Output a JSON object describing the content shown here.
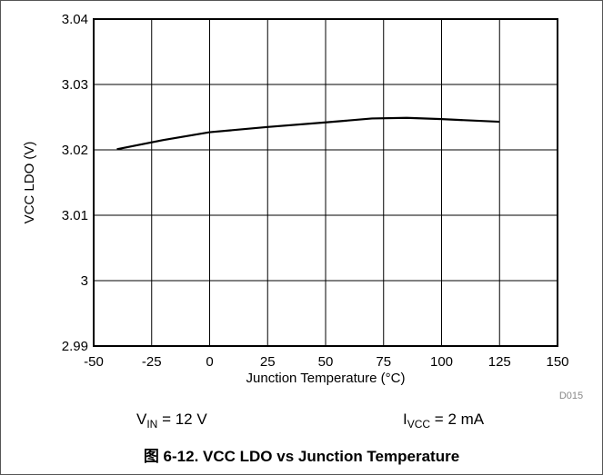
{
  "chart_data": {
    "type": "line",
    "xlabel": "Junction Temperature (°C)",
    "ylabel": "VCC LDO (V)",
    "xlim": [
      -50,
      150
    ],
    "ylim": [
      2.99,
      3.04
    ],
    "x_ticks": [
      "-50",
      "-25",
      "0",
      "25",
      "50",
      "75",
      "100",
      "125",
      "150"
    ],
    "y_ticks": [
      "2.99",
      "3",
      "3.01",
      "3.02",
      "3.03",
      "3.04"
    ],
    "grid": true,
    "series": [
      {
        "x": [
          -40,
          -20,
          0,
          25,
          50,
          70,
          85,
          100,
          125
        ],
        "y": [
          3.0201,
          3.0215,
          3.0227,
          3.0235,
          3.0242,
          3.0248,
          3.0249,
          3.0247,
          3.0243
        ]
      }
    ],
    "code": "D015",
    "color": "#000000"
  },
  "conditions": {
    "vin": {
      "main": "V",
      "sub": "IN",
      "rest": " = 12 V"
    },
    "ivcc": {
      "main": "I",
      "sub": "VCC",
      "rest": " = 2 mA"
    }
  },
  "caption": "图 6-12. VCC LDO vs Junction Temperature"
}
